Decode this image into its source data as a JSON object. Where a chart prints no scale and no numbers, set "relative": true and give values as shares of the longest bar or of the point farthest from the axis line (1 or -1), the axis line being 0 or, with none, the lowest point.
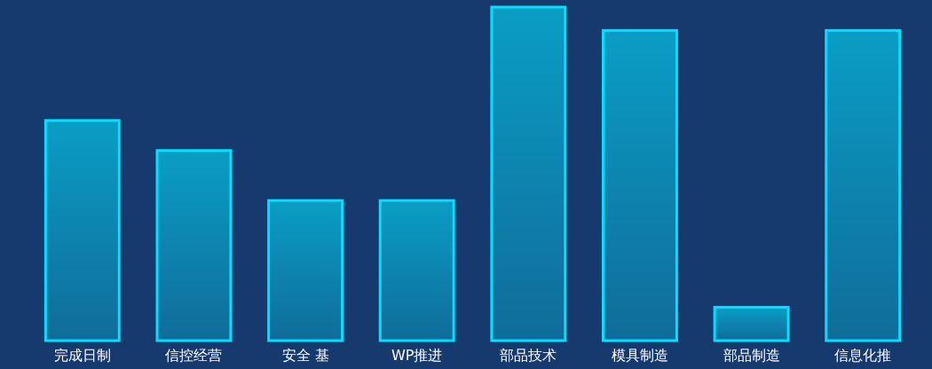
{
  "chart_data": {
    "type": "bar",
    "relative": true,
    "categories": [
      "完成日制",
      "信控经营",
      "安全 基",
      "WP推进",
      "部品技术",
      "模具制造",
      "部品制造",
      "信息化推"
    ],
    "values": [
      0.66,
      0.57,
      0.42,
      0.42,
      1,
      0.93,
      0.1,
      0.93
    ],
    "color": "#00e0ff"
  }
}
